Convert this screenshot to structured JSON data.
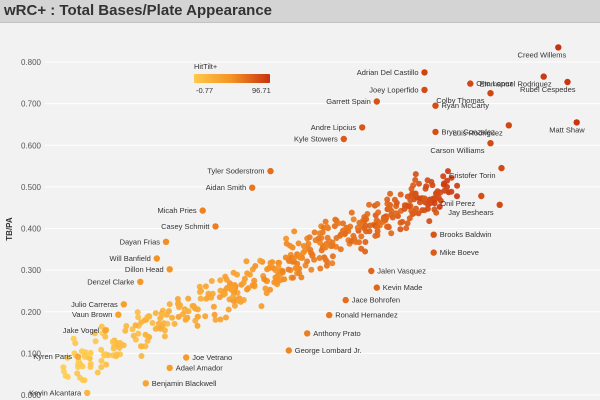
{
  "header": {
    "title": "wRC+ : Total Bases/Plate Appearance"
  },
  "legend": {
    "title": "HitTilt+",
    "min_label": "-0.77",
    "max_label": "96.71",
    "color_low": "#ffc94a",
    "color_high": "#c7320e"
  },
  "colors": {
    "low": "#ffd052",
    "mid": "#f59224",
    "high": "#c7320e",
    "grid": "#ffffff"
  },
  "chart_data": {
    "type": "scatter",
    "title": "wRC+ : Total Bases/Plate Appearance",
    "ylabel": "TB/PA",
    "xlabel": "",
    "ylim": [
      0.0,
      0.85
    ],
    "yticks": [
      "0.000",
      "0.100",
      "0.200",
      "0.300",
      "0.400",
      "0.500",
      "0.600",
      "0.700",
      "0.800"
    ],
    "ytick_values": [
      0.0,
      0.1,
      0.2,
      0.3,
      0.4,
      0.5,
      0.6,
      0.7,
      0.8
    ],
    "xlim": [
      -60,
      240
    ],
    "color_metric": "HitTilt+",
    "color_range": [
      -0.77,
      96.71
    ],
    "labeled_points": [
      {
        "name": "Creed Willems",
        "x": 220,
        "y": 0.835,
        "c": 96
      },
      {
        "name": "Emmanuel Rodriguez",
        "x": 212,
        "y": 0.765,
        "c": 92
      },
      {
        "name": "Rubel Cespedes",
        "x": 225,
        "y": 0.752,
        "c": 94
      },
      {
        "name": "Adrian Del Castillo",
        "x": 147,
        "y": 0.775,
        "c": 88
      },
      {
        "name": "Otto Lopez",
        "x": 172,
        "y": 0.748,
        "c": 86
      },
      {
        "name": "Joey Loperfido",
        "x": 147,
        "y": 0.733,
        "c": 84
      },
      {
        "name": "Colby Thomas",
        "x": 183,
        "y": 0.725,
        "c": 86
      },
      {
        "name": "Garrett Spain",
        "x": 121,
        "y": 0.705,
        "c": 80
      },
      {
        "name": "Ryan McCarty",
        "x": 153,
        "y": 0.695,
        "c": 83
      },
      {
        "name": "Matt Shaw",
        "x": 230,
        "y": 0.655,
        "c": 95
      },
      {
        "name": "Luis Rodriguez",
        "x": 193,
        "y": 0.648,
        "c": 86
      },
      {
        "name": "Andre Lipcius",
        "x": 113,
        "y": 0.643,
        "c": 78
      },
      {
        "name": "Bryan Gonzalez",
        "x": 153,
        "y": 0.632,
        "c": 82
      },
      {
        "name": "Kyle Stowers",
        "x": 103,
        "y": 0.615,
        "c": 76
      },
      {
        "name": "Carson Williams",
        "x": 183,
        "y": 0.605,
        "c": 85
      },
      {
        "name": "Tyler Soderstrom",
        "x": 63,
        "y": 0.538,
        "c": 66
      },
      {
        "name": "Cristofer Torin",
        "x": 189,
        "y": 0.545,
        "c": 84
      },
      {
        "name": "Aidan Smith",
        "x": 53,
        "y": 0.498,
        "c": 62
      },
      {
        "name": "Onil Perez",
        "x": 178,
        "y": 0.478,
        "c": 82
      },
      {
        "name": "Jay Beshears",
        "x": 188,
        "y": 0.457,
        "c": 84
      },
      {
        "name": "Micah Pries",
        "x": 26,
        "y": 0.443,
        "c": 56
      },
      {
        "name": "Casey Schmitt",
        "x": 33,
        "y": 0.405,
        "c": 58
      },
      {
        "name": "Brooks Baldwin",
        "x": 152,
        "y": 0.385,
        "c": 78
      },
      {
        "name": "Dayan Frias",
        "x": 6,
        "y": 0.368,
        "c": 50
      },
      {
        "name": "Will Banfield",
        "x": 1,
        "y": 0.328,
        "c": 48
      },
      {
        "name": "Mike Boeve",
        "x": 152,
        "y": 0.342,
        "c": 76
      },
      {
        "name": "Dillon Head",
        "x": 8,
        "y": 0.302,
        "c": 46
      },
      {
        "name": "Jalen Vasquez",
        "x": 118,
        "y": 0.298,
        "c": 70
      },
      {
        "name": "Denzel Clarke",
        "x": -8,
        "y": 0.272,
        "c": 44
      },
      {
        "name": "Kevin Made",
        "x": 121,
        "y": 0.258,
        "c": 70
      },
      {
        "name": "Jace Bohrofen",
        "x": 104,
        "y": 0.228,
        "c": 66
      },
      {
        "name": "Julio Carreras",
        "x": -17,
        "y": 0.218,
        "c": 38
      },
      {
        "name": "Ronald Hernandez",
        "x": 95,
        "y": 0.192,
        "c": 62
      },
      {
        "name": "Vaun Brown",
        "x": -20,
        "y": 0.193,
        "c": 36
      },
      {
        "name": "Jake Vogel",
        "x": -27,
        "y": 0.155,
        "c": 34
      },
      {
        "name": "Anthony Prato",
        "x": 83,
        "y": 0.148,
        "c": 58
      },
      {
        "name": "George Lombard Jr.",
        "x": 73,
        "y": 0.107,
        "c": 54
      },
      {
        "name": "Kyren Paris",
        "x": -42,
        "y": 0.092,
        "c": 30
      },
      {
        "name": "Joe Vetrano",
        "x": 17,
        "y": 0.09,
        "c": 42
      },
      {
        "name": "Adael Amador",
        "x": 8,
        "y": 0.065,
        "c": 38
      },
      {
        "name": "Benjamin Blackwell",
        "x": -5,
        "y": 0.028,
        "c": 34
      },
      {
        "name": "Kevin Alcantara",
        "x": -37,
        "y": 0.005,
        "c": 20
      }
    ]
  }
}
